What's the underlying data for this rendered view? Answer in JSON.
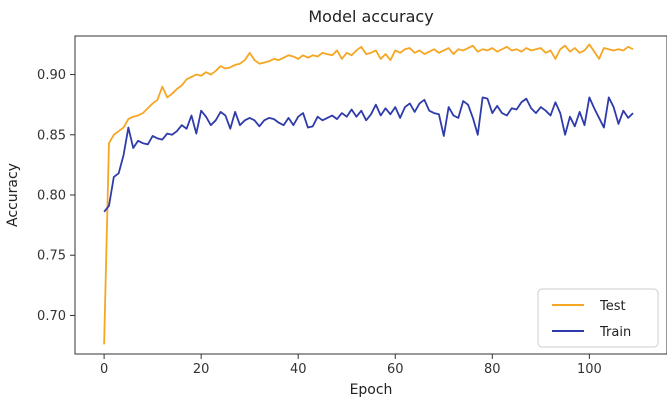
{
  "chart_data": {
    "type": "line",
    "title": "Model accuracy",
    "xlabel": "Epoch",
    "ylabel": "Accuracy",
    "xlim": [
      -6,
      116
    ],
    "ylim": [
      0.668,
      0.932
    ],
    "xticks": [
      0,
      20,
      40,
      60,
      80,
      100
    ],
    "yticks": [
      0.7,
      0.75,
      0.8,
      0.85,
      0.9
    ],
    "xtick_labels": [
      "0",
      "20",
      "40",
      "60",
      "80",
      "100"
    ],
    "ytick_labels": [
      "0.70",
      "0.75",
      "0.80",
      "0.85",
      "0.90"
    ],
    "grid": false,
    "legend_position": "lower-right",
    "series": [
      {
        "name": "Test",
        "color": "#F5A623",
        "values": [
          0.676,
          0.843,
          0.85,
          0.853,
          0.856,
          0.863,
          0.865,
          0.866,
          0.868,
          0.872,
          0.876,
          0.879,
          0.89,
          0.881,
          0.884,
          0.888,
          0.891,
          0.896,
          0.898,
          0.9,
          0.899,
          0.902,
          0.9,
          0.903,
          0.907,
          0.905,
          0.906,
          0.908,
          0.909,
          0.912,
          0.918,
          0.912,
          0.909,
          0.91,
          0.911,
          0.913,
          0.912,
          0.914,
          0.916,
          0.915,
          0.913,
          0.916,
          0.914,
          0.916,
          0.915,
          0.918,
          0.917,
          0.916,
          0.92,
          0.913,
          0.918,
          0.916,
          0.92,
          0.923,
          0.917,
          0.918,
          0.92,
          0.913,
          0.917,
          0.912,
          0.92,
          0.918,
          0.921,
          0.922,
          0.918,
          0.92,
          0.917,
          0.919,
          0.921,
          0.918,
          0.92,
          0.922,
          0.917,
          0.921,
          0.92,
          0.922,
          0.924,
          0.919,
          0.921,
          0.92,
          0.922,
          0.919,
          0.921,
          0.923,
          0.92,
          0.921,
          0.919,
          0.922,
          0.92,
          0.921,
          0.922,
          0.918,
          0.92,
          0.913,
          0.921,
          0.924,
          0.919,
          0.922,
          0.918,
          0.92,
          0.925,
          0.919,
          0.913,
          0.922,
          0.921,
          0.92,
          0.921,
          0.92,
          0.923,
          0.921
        ]
      },
      {
        "name": "Train",
        "color": "#2E3BAA",
        "values": [
          0.786,
          0.791,
          0.815,
          0.818,
          0.833,
          0.856,
          0.839,
          0.845,
          0.843,
          0.842,
          0.849,
          0.847,
          0.846,
          0.851,
          0.85,
          0.853,
          0.858,
          0.855,
          0.866,
          0.851,
          0.87,
          0.865,
          0.858,
          0.862,
          0.869,
          0.866,
          0.855,
          0.869,
          0.858,
          0.862,
          0.864,
          0.862,
          0.857,
          0.862,
          0.864,
          0.863,
          0.86,
          0.858,
          0.864,
          0.858,
          0.865,
          0.868,
          0.856,
          0.857,
          0.865,
          0.862,
          0.864,
          0.866,
          0.863,
          0.868,
          0.865,
          0.871,
          0.865,
          0.87,
          0.862,
          0.867,
          0.875,
          0.866,
          0.872,
          0.867,
          0.873,
          0.864,
          0.873,
          0.876,
          0.869,
          0.876,
          0.879,
          0.87,
          0.868,
          0.867,
          0.849,
          0.873,
          0.866,
          0.864,
          0.878,
          0.875,
          0.864,
          0.85,
          0.881,
          0.88,
          0.868,
          0.874,
          0.868,
          0.866,
          0.872,
          0.871,
          0.877,
          0.88,
          0.872,
          0.868,
          0.873,
          0.87,
          0.866,
          0.877,
          0.868,
          0.85,
          0.865,
          0.857,
          0.869,
          0.858,
          0.881,
          0.872,
          0.864,
          0.856,
          0.881,
          0.873,
          0.859,
          0.87,
          0.864,
          0.868
        ]
      }
    ]
  }
}
